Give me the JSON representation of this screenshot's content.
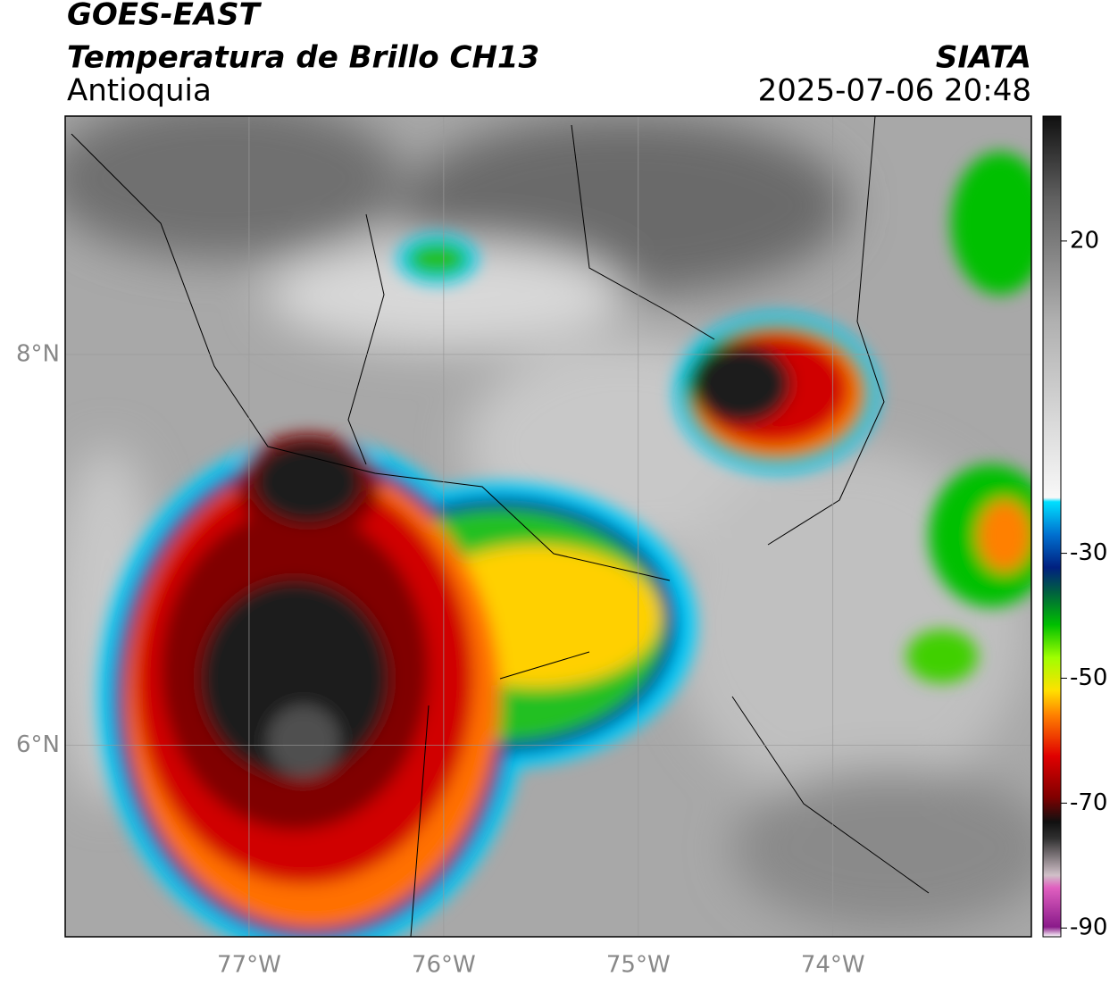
{
  "header": {
    "title": "GOES-EAST",
    "subtitle": "Temperatura de Brillo CH13",
    "region": "Antioquia",
    "source": "SIATA",
    "datetime": "2025-07-06 20:48"
  },
  "map": {
    "xlim": [
      -77.945,
      -72.98
    ],
    "ylim": [
      5.02,
      9.22
    ],
    "xticks": [
      {
        "value": -77,
        "label": "77°W"
      },
      {
        "value": -76,
        "label": "76°W"
      },
      {
        "value": -75,
        "label": "75°W"
      },
      {
        "value": -74,
        "label": "74°W"
      }
    ],
    "yticks": [
      {
        "value": 6,
        "label": "6°N"
      },
      {
        "value": 8,
        "label": "8°N"
      }
    ],
    "grid": true
  },
  "colorbar": {
    "lim": [
      -91.4,
      40
    ],
    "ticks": [
      20,
      -30,
      -50,
      -70,
      -90
    ]
  }
}
